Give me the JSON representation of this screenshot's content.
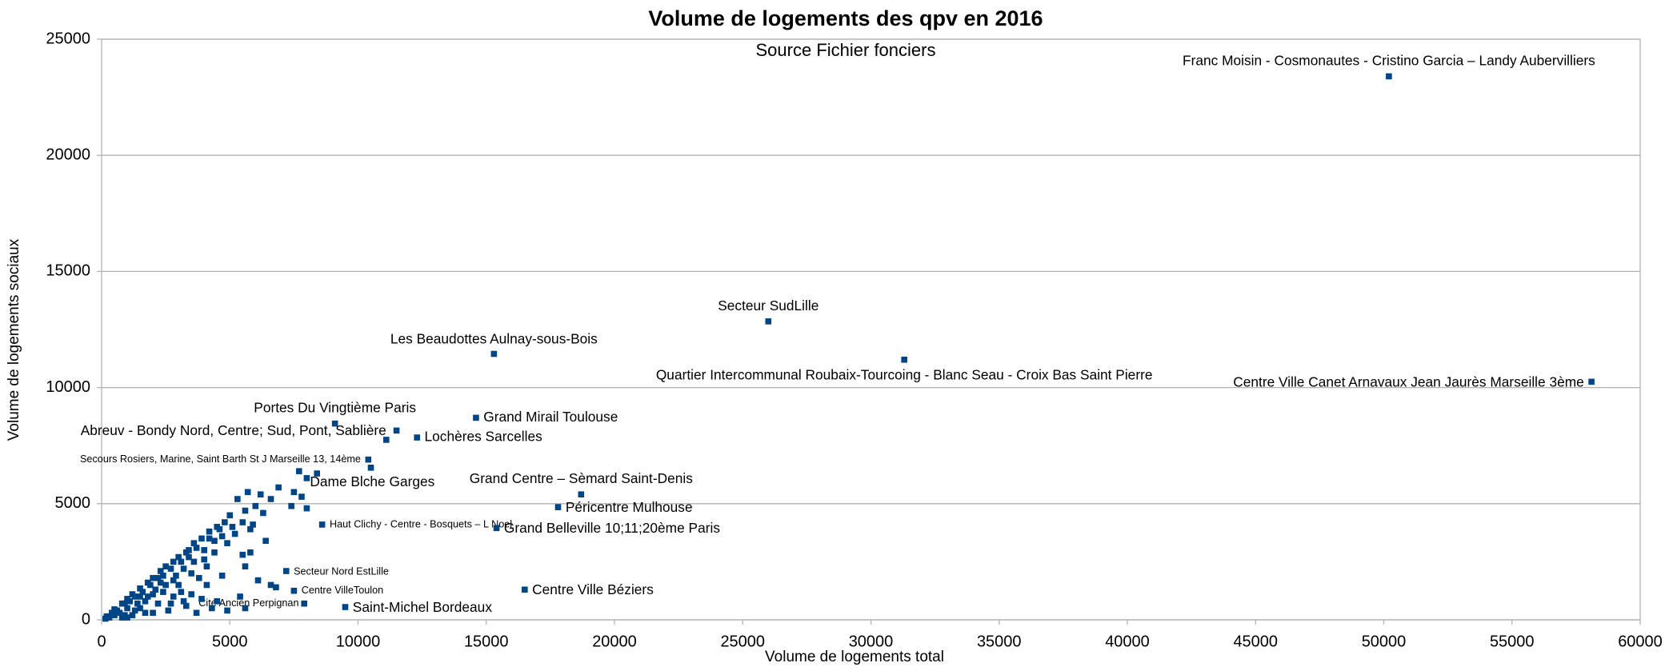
{
  "chart_data": {
    "type": "scatter",
    "title": "Volume de logements des qpv en 2016",
    "subtitle": "Source Fichier fonciers",
    "x_label": "Volume de logements total",
    "y_label": "Volume de logements sociaux",
    "xlim": [
      0,
      60000
    ],
    "xticks": [
      0,
      5000,
      10000,
      15000,
      20000,
      25000,
      30000,
      35000,
      40000,
      45000,
      50000,
      55000,
      60000
    ],
    "ylim": [
      0,
      25000
    ],
    "yticks": [
      0,
      5000,
      10000,
      15000,
      20000,
      25000
    ],
    "grid": true,
    "color": "#004586",
    "series": [
      {
        "x": [
          50200,
          26000,
          15300,
          31300,
          58100,
          14600,
          9100,
          11100,
          12300,
          10400,
          8000,
          18700,
          17800,
          8600,
          15400,
          7200,
          7500,
          16500,
          7900,
          9500
        ],
        "values": [
          23400,
          12850,
          11450,
          11200,
          10250,
          8700,
          8450,
          7750,
          7850,
          6900,
          6100,
          5400,
          4850,
          4100,
          3950,
          2100,
          1250,
          1300,
          700,
          550
        ],
        "labels": [
          "Franc Moisin - Cosmonautes - Cristino Garcia – Landy Aubervilliers",
          "Secteur SudLille",
          "Les Beaudottes Aulnay-sous-Bois",
          "Quartier Intercommunal Roubaix-Tourcoing - Blanc Seau - Croix Bas Saint Pierre",
          "Centre Ville Canet Arnavaux Jean Jaurès Marseille 3ème",
          "Grand Mirail Toulouse",
          "Portes Du Vingtième Paris",
          "Abreuv - Bondy Nord, Centre;  Sud, Pont, Sablière",
          "Lochères Sarcelles",
          "Secours Rosiers, Marine, Saint Barth St J Marseille 13, 14ème",
          "Dame Blche Garges",
          "Grand Centre – Sèmard Saint-Denis",
          "Péricentre Mulhouse",
          "Haut Clichy - Centre - Bosquets – L Noel",
          "Grand Belleville 10;11;20ème Paris",
          "Secteur Nord EstLille",
          "Centre VilleToulon",
          "Centre Ville Béziers",
          "Cite Ancien Perpignan",
          "Saint-Michel Bordeaux"
        ]
      },
      {
        "x": [
          11500,
          10500,
          500,
          800,
          1000,
          1200,
          1500,
          1800,
          2000,
          2300,
          2500,
          2800,
          3000,
          3300,
          3600,
          3900,
          4200,
          4500,
          5000,
          5300,
          5700,
          6200,
          6600,
          6900,
          7500,
          7700,
          8400,
          7800,
          7400,
          8000,
          6000,
          5600,
          6300,
          5900,
          6400,
          5800,
          5200,
          4900,
          5500,
          5800,
          5600,
          4400,
          4000,
          4700,
          5400,
          6100,
          6600,
          6800,
          4900,
          5600,
          3700,
          4300,
          3200,
          2600,
          3500,
          3000,
          4100,
          2800,
          3800,
          2200,
          1700,
          1200,
          800,
          300,
          500,
          1000,
          1400,
          1800,
          2100,
          2500,
          2900,
          3200,
          3600,
          4000,
          4400,
          4700,
          5100,
          5500,
          1500,
          1900,
          2400,
          2700,
          3100,
          3400,
          3700,
          4200,
          4600,
          600,
          900,
          1100,
          1300,
          1600,
          2000,
          2300,
          700,
          1500,
          2700,
          3300,
          4500,
          1300,
          2000,
          1000,
          2400,
          3500,
          4100,
          3900,
          2800,
          3100,
          200,
          400,
          150,
          900,
          1700,
          2200,
          3400,
          4800
        ],
        "values": [
          8150,
          6550,
          450,
          700,
          900,
          1100,
          1350,
          1600,
          1800,
          2100,
          2300,
          2500,
          2700,
          2900,
          3300,
          3500,
          3800,
          4000,
          4500,
          5200,
          5500,
          5400,
          5200,
          5700,
          5500,
          6400,
          6300,
          5300,
          4900,
          4800,
          4900,
          4700,
          4600,
          4100,
          3400,
          3900,
          3700,
          3300,
          2800,
          2900,
          2300,
          2900,
          2600,
          1900,
          1000,
          1700,
          1500,
          1400,
          400,
          500,
          300,
          500,
          800,
          400,
          1100,
          1500,
          1500,
          1000,
          1800,
          700,
          300,
          200,
          100,
          100,
          200,
          500,
          700,
          1000,
          1300,
          1500,
          1900,
          2200,
          2500,
          3000,
          3400,
          3600,
          4000,
          4200,
          1000,
          1500,
          1900,
          2200,
          2500,
          2700,
          3100,
          3500,
          3900,
          400,
          700,
          800,
          1000,
          1200,
          1100,
          1600,
          300,
          500,
          700,
          600,
          800,
          400,
          300,
          100,
          1200,
          2000,
          2300,
          900,
          1700,
          1200,
          150,
          300,
          50,
          200,
          800,
          1800,
          3000,
          4200
        ]
      }
    ]
  }
}
